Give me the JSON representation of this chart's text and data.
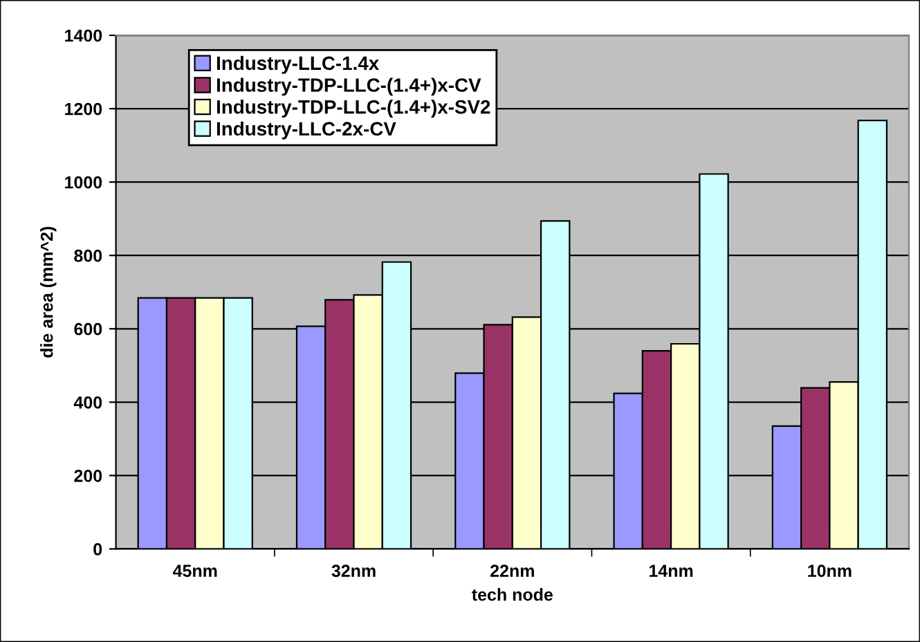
{
  "chart_data": {
    "type": "bar",
    "xlabel": "tech node",
    "ylabel": "die area (mm^2)",
    "categories": [
      "45nm",
      "32nm",
      "22nm",
      "14nm",
      "10nm"
    ],
    "series": [
      {
        "name": "Industry-LLC-1.4x",
        "color": "#9999ff",
        "values": [
          684,
          607,
          479,
          424,
          335
        ]
      },
      {
        "name": "Industry-TDP-LLC-(1.4+)x-CV",
        "color": "#993366",
        "values": [
          684,
          679,
          611,
          540,
          439
        ]
      },
      {
        "name": "Industry-TDP-LLC-(1.4+)x-SV2",
        "color": "#ffffcc",
        "values": [
          684,
          692,
          632,
          559,
          455
        ]
      },
      {
        "name": "Industry-LLC-2x-CV",
        "color": "#ccffff",
        "values": [
          684,
          782,
          894,
          1022,
          1168
        ]
      }
    ],
    "ylim": [
      0,
      1400
    ],
    "yticks": [
      0,
      200,
      400,
      600,
      800,
      1000,
      1200,
      1400
    ],
    "grid": "y",
    "legend": "top left"
  }
}
